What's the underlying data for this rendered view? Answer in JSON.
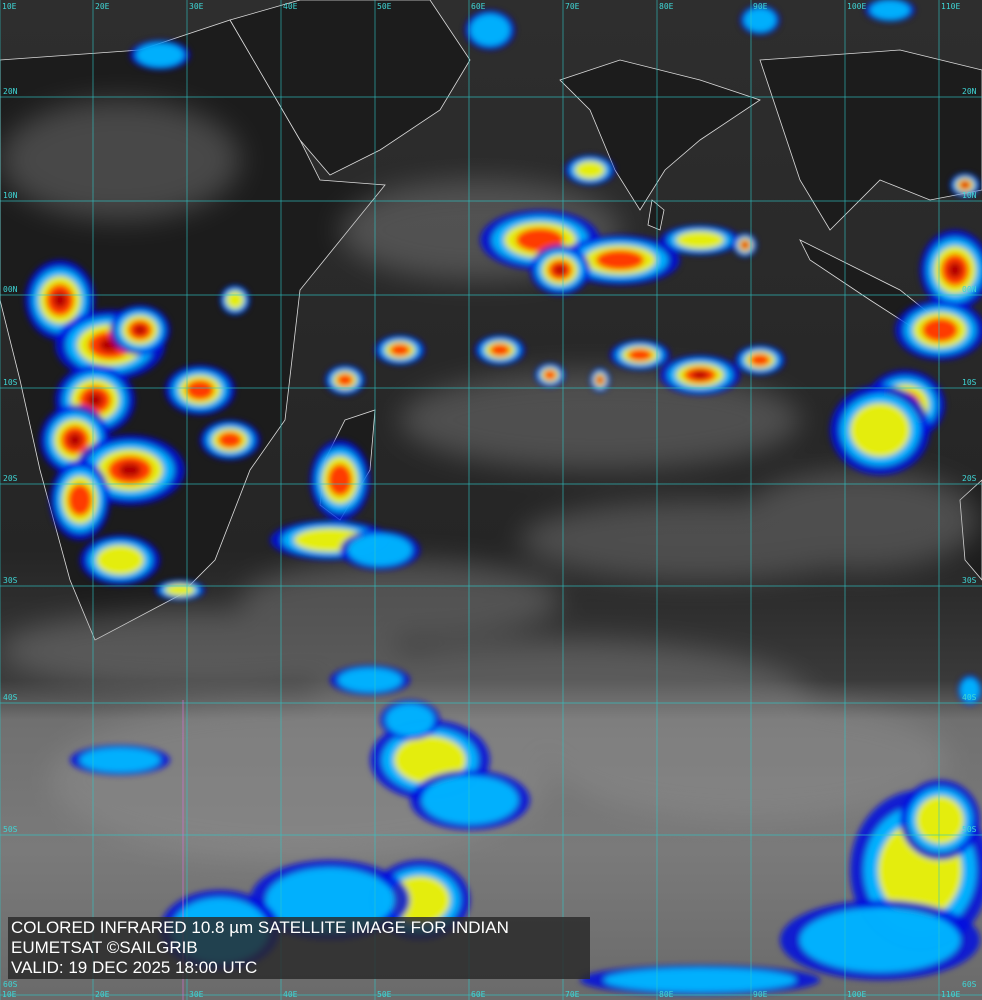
{
  "caption": {
    "line1": "COLORED INFRARED 10.8 µm SATELLITE IMAGE FOR INDIAN",
    "line2": "EUMETSAT ©SAILGRIB",
    "line3": "VALID:  19 DEC 2025 18:00 UTC"
  },
  "grid": {
    "longitudes": [
      "10E",
      "20E",
      "30E",
      "40E",
      "50E",
      "60E",
      "70E",
      "80E",
      "90E",
      "100E",
      "110E"
    ],
    "latitudes": [
      "20N",
      "10N",
      "00N",
      "10S",
      "20S",
      "30S",
      "40S",
      "50S",
      "60S"
    ],
    "color": "#2fc8c8"
  },
  "colors": {
    "ocean_dark": "#262626",
    "land_dark": "#1c1c1c",
    "southern_cloud": "#8a8a8a",
    "coastline": "#e6e6e6",
    "ir_scale": [
      "#0010e0",
      "#00b8ff",
      "#f0f000",
      "#ff3000",
      "#b00000"
    ]
  }
}
